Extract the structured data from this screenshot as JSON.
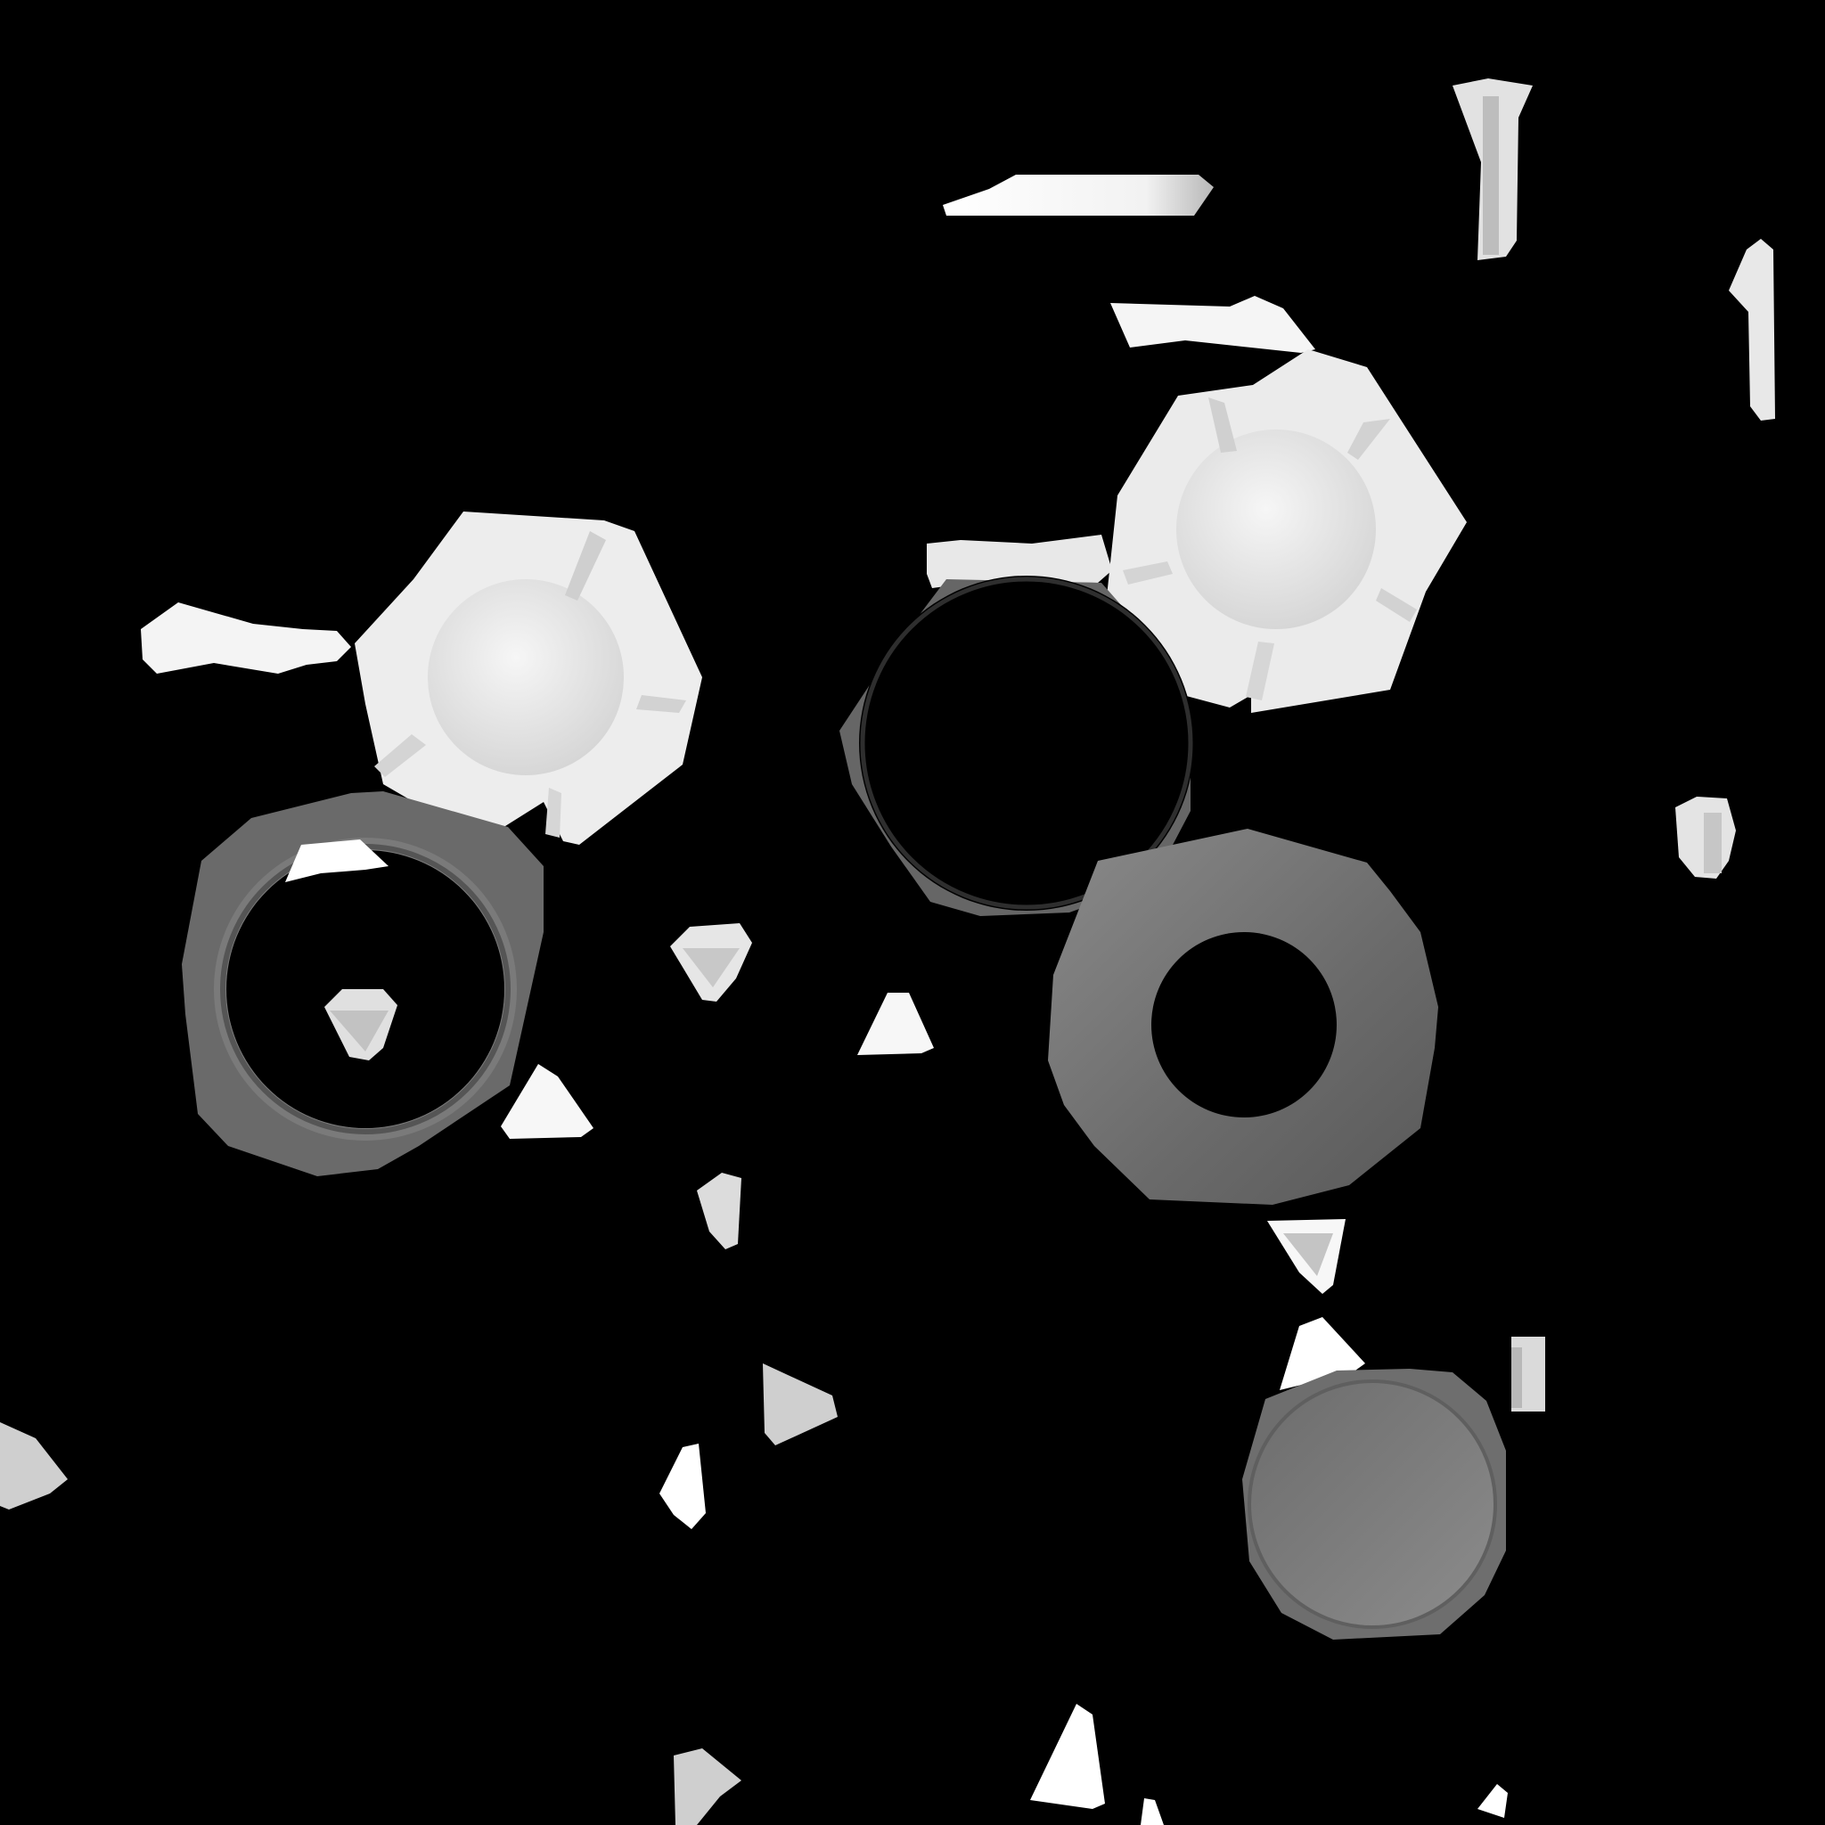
{
  "image": {
    "background": "#000000",
    "palette": {
      "white": "#ffffff",
      "light": "#e6e6e6",
      "silver": "#c8c8c8",
      "mid_gray": "#7a7a7a",
      "dark_gray": "#5a5a5a",
      "ring_gray": "#6e6e6e"
    }
  }
}
